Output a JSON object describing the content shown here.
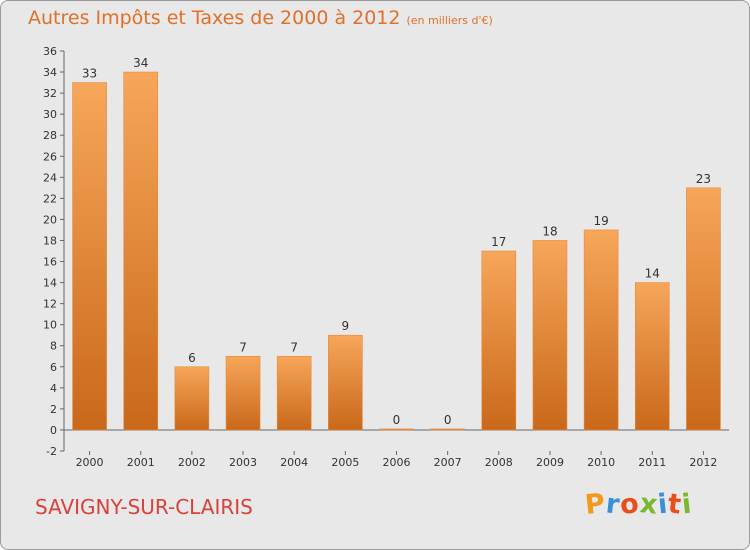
{
  "chart_data": {
    "type": "bar",
    "title": "Autres Impôts et Taxes de 2000 à 2012",
    "subtitle": "(en milliers d'€)",
    "categories": [
      "2000",
      "2001",
      "2002",
      "2003",
      "2004",
      "2005",
      "2006",
      "2007",
      "2008",
      "2009",
      "2010",
      "2011",
      "2012"
    ],
    "values": [
      33,
      34,
      6,
      7,
      7,
      9,
      0,
      0,
      17,
      18,
      19,
      14,
      23
    ],
    "ylim": [
      -2,
      36
    ],
    "yticks": [
      -2,
      0,
      2,
      4,
      6,
      8,
      10,
      12,
      14,
      16,
      18,
      20,
      22,
      24,
      26,
      28,
      30,
      32,
      34,
      36
    ],
    "grid": false,
    "bar_color_top": "#f7a65a",
    "bar_color_bottom": "#c9681a"
  },
  "commune": "SAVIGNY-SUR-CLAIRIS",
  "logo": {
    "letters": [
      "P",
      "r",
      "o",
      "x",
      "i",
      "t",
      "i"
    ],
    "colors": [
      "#f29a1d",
      "#3b8fd6",
      "#e84d1c",
      "#7cb82f",
      "#3b8fd6",
      "#e84d1c",
      "#7cb82f"
    ]
  }
}
